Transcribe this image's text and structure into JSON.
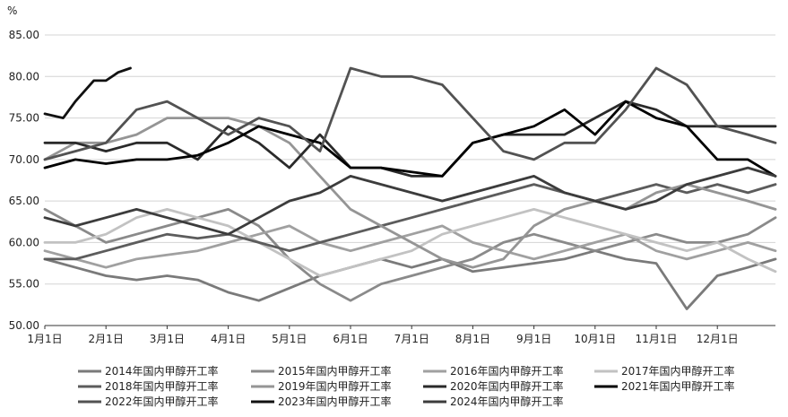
{
  "chart_data": {
    "type": "line",
    "ylabel": "%",
    "ylim": [
      50,
      85
    ],
    "yticks": [
      "85.00",
      "80.00",
      "75.00",
      "70.00",
      "65.00",
      "60.00",
      "55.00",
      "50.00"
    ],
    "ytick_values": [
      85,
      80,
      75,
      70,
      65,
      60,
      55,
      50
    ],
    "x_labels": [
      "1月1日",
      "2月1日",
      "3月1日",
      "4月1日",
      "5月1日",
      "6月1日",
      "7月1日",
      "8月1日",
      "9月1日",
      "10月1日",
      "11月1日",
      "12月1日"
    ],
    "x_label_positions": [
      0,
      1,
      2,
      3,
      4,
      5,
      6,
      7,
      8,
      9,
      10,
      11
    ],
    "xlim": [
      0,
      11.95
    ],
    "grid": "horizontal",
    "legend_position": "bottom",
    "series": [
      {
        "name": "2014年国内甲醇开工率",
        "color": "#7a7a7a",
        "width": 2.8,
        "x": [
          0,
          0.5,
          1,
          1.5,
          2,
          2.5,
          3,
          3.5,
          4,
          4.5,
          5,
          5.5,
          6,
          6.5,
          7,
          7.5,
          8,
          8.5,
          9,
          9.5,
          10,
          10.5,
          11,
          11.5,
          11.95
        ],
        "y": [
          58,
          57,
          56,
          55.5,
          56,
          55.5,
          54,
          53,
          54.5,
          56,
          57,
          58,
          57,
          58,
          56.5,
          57,
          57.5,
          58,
          59,
          58,
          57.5,
          52,
          56,
          57,
          58
        ]
      },
      {
        "name": "2015年国内甲醇开工率",
        "color": "#8a8a8a",
        "width": 2.8,
        "x": [
          0,
          0.5,
          1,
          1.5,
          2,
          2.5,
          3,
          3.5,
          4,
          4.5,
          5,
          5.5,
          6,
          6.5,
          7,
          7.5,
          8,
          8.5,
          9,
          9.5,
          10,
          10.5,
          11,
          11.5,
          11.95
        ],
        "y": [
          64,
          62,
          60,
          61,
          62,
          63,
          64,
          62,
          58,
          55,
          53,
          55,
          56,
          57,
          58,
          60,
          61,
          60,
          59,
          60,
          61,
          60,
          60,
          61,
          63
        ]
      },
      {
        "name": "2016年国内甲醇开工率",
        "color": "#a0a0a0",
        "width": 2.8,
        "x": [
          0,
          0.5,
          1,
          1.5,
          2,
          2.5,
          3,
          3.5,
          4,
          4.5,
          5,
          5.5,
          6,
          6.5,
          7,
          7.5,
          8,
          8.5,
          9,
          9.5,
          10,
          10.5,
          11,
          11.5,
          11.95
        ],
        "y": [
          59,
          58,
          57,
          58,
          58.5,
          59,
          60,
          61,
          62,
          60,
          59,
          60,
          61,
          62,
          60,
          59,
          58,
          59,
          60,
          61,
          59,
          58,
          59,
          60,
          59
        ]
      },
      {
        "name": "2017年国内甲醇开工率",
        "color": "#c2c2c2",
        "width": 2.8,
        "x": [
          0,
          0.5,
          1,
          1.5,
          2,
          2.5,
          3,
          3.5,
          4,
          4.5,
          5,
          5.5,
          6,
          6.5,
          7,
          7.5,
          8,
          8.5,
          9,
          9.5,
          10,
          10.5,
          11,
          11.5,
          11.95
        ],
        "y": [
          60,
          60,
          61,
          63,
          64,
          63,
          62,
          60,
          58,
          56,
          57,
          58,
          59,
          61,
          62,
          63,
          64,
          63,
          62,
          61,
          60,
          59,
          60,
          58,
          56.5
        ]
      },
      {
        "name": "2018年国内甲醇开工率",
        "color": "#5c5c5c",
        "width": 2.8,
        "x": [
          0,
          0.5,
          1,
          1.5,
          2,
          2.5,
          3,
          3.5,
          4,
          4.5,
          5,
          5.5,
          6,
          6.5,
          7,
          7.5,
          8,
          8.5,
          9,
          9.5,
          10,
          10.5,
          11,
          11.5,
          11.95
        ],
        "y": [
          58,
          58,
          59,
          60,
          61,
          60.5,
          61,
          60,
          59,
          60,
          61,
          62,
          63,
          64,
          65,
          66,
          67,
          66,
          65,
          66,
          67,
          66,
          67,
          66,
          67
        ]
      },
      {
        "name": "2019年国内甲醇开工率",
        "color": "#959595",
        "width": 2.8,
        "x": [
          0,
          0.5,
          1,
          1.5,
          2,
          2.5,
          3,
          3.5,
          4,
          4.5,
          5,
          5.5,
          6,
          6.5,
          7,
          7.5,
          8,
          8.5,
          9,
          9.5,
          10,
          10.5,
          11,
          11.5,
          11.95
        ],
        "y": [
          70,
          72,
          72,
          73,
          75,
          75,
          75,
          74,
          72,
          68,
          64,
          62,
          60,
          58,
          57,
          58,
          62,
          64,
          65,
          64,
          66,
          67,
          66,
          65,
          64
        ]
      },
      {
        "name": "2020年国内甲醇开工率",
        "color": "#2a2a2a",
        "width": 2.8,
        "x": [
          0,
          0.5,
          1,
          1.5,
          2,
          2.5,
          3,
          3.5,
          4,
          4.5,
          5,
          5.5,
          6,
          6.5,
          7,
          7.5,
          8,
          8.5,
          9,
          9.5,
          10,
          10.5,
          11,
          11.5,
          11.95
        ],
        "y": [
          72,
          72,
          71,
          72,
          72,
          70,
          74,
          72,
          69,
          73,
          69,
          69,
          68,
          68,
          72,
          73,
          73,
          73,
          75,
          77,
          76,
          74,
          74,
          74,
          74
        ]
      },
      {
        "name": "2021年国内甲醇开工率",
        "color": "#000000",
        "width": 2.8,
        "x": [
          0,
          0.5,
          1,
          1.5,
          2,
          2.5,
          3,
          3.5,
          4,
          4.5,
          5,
          5.5,
          6,
          6.5,
          7,
          7.5,
          8,
          8.5,
          9,
          9.5,
          10,
          10.5,
          11,
          11.5,
          11.95
        ],
        "y": [
          69,
          70,
          69.5,
          70,
          70,
          70.5,
          72,
          74,
          73,
          72,
          69,
          69,
          68.5,
          68,
          72,
          73,
          74,
          76,
          73,
          77,
          75,
          74,
          70,
          70,
          68
        ]
      },
      {
        "name": "2022年国内甲醇开工率",
        "color": "#525252",
        "width": 2.8,
        "x": [
          0,
          0.5,
          1,
          1.5,
          2,
          2.5,
          3,
          3.5,
          4,
          4.5,
          5,
          5.5,
          6,
          6.5,
          7,
          7.5,
          8,
          8.5,
          9,
          9.5,
          10,
          10.5,
          11,
          11.5,
          11.95
        ],
        "y": [
          70,
          71,
          72,
          76,
          77,
          75,
          73,
          75,
          74,
          71,
          81,
          80,
          80,
          79,
          75,
          71,
          70,
          72,
          72,
          76,
          81,
          79,
          74,
          73,
          72
        ]
      },
      {
        "name": "2023年国内甲醇开工率",
        "color": "#111111",
        "width": 2.8,
        "x": [
          0,
          0.3,
          0.5,
          0.8,
          1,
          1.2,
          1.4
        ],
        "y": [
          75.5,
          75,
          77,
          79.5,
          79.5,
          80.5,
          81
        ]
      },
      {
        "name": "2024年国内甲醇开工率",
        "color": "#3c3c3c",
        "width": 2.8,
        "x": [
          0,
          0.5,
          1,
          1.5,
          2,
          2.5,
          3,
          3.5,
          4,
          4.5,
          5,
          5.5,
          6,
          6.5,
          7,
          7.5,
          8,
          8.5,
          9,
          9.5,
          10,
          10.5,
          11,
          11.5,
          11.95
        ],
        "y": [
          63,
          62,
          63,
          64,
          63,
          62,
          61,
          63,
          65,
          66,
          68,
          67,
          66,
          65,
          66,
          67,
          68,
          66,
          65,
          64,
          65,
          67,
          68,
          69,
          68
        ]
      }
    ]
  }
}
